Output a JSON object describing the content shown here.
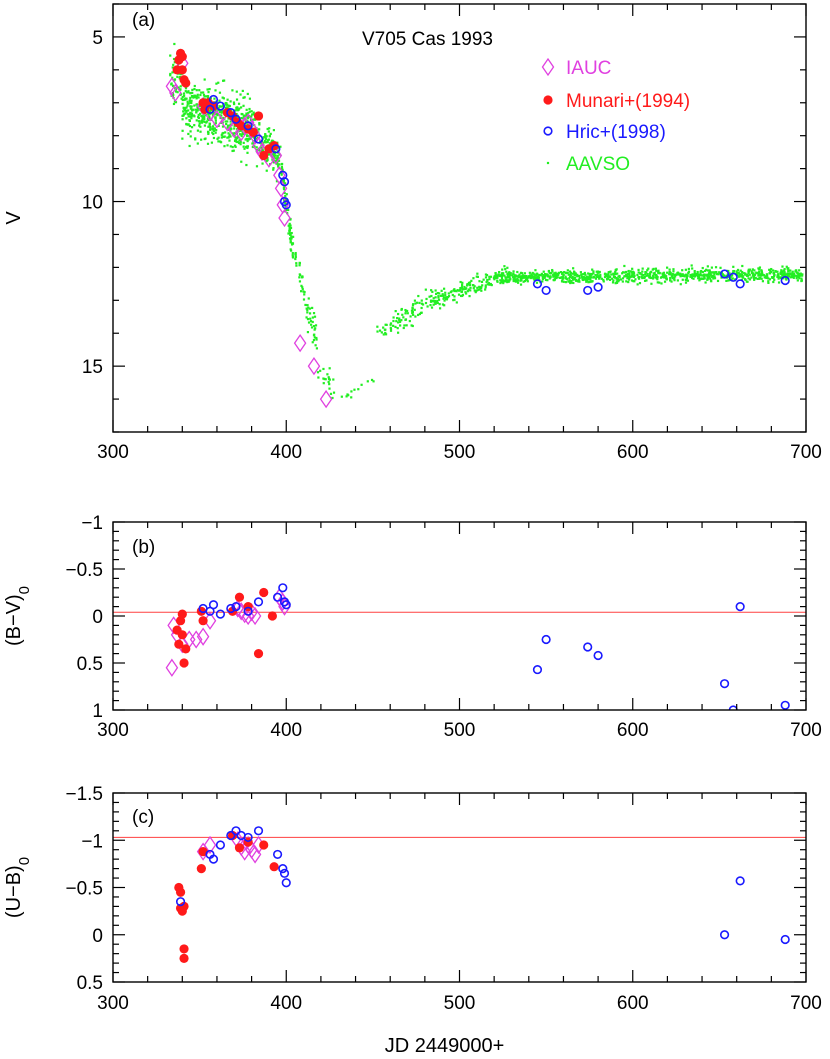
{
  "chart_data": [
    {
      "panel": "(a)",
      "type": "scatter",
      "title": "V705 Cas 1993",
      "xlabel": "",
      "ylabel": "V",
      "xlim": [
        300,
        700
      ],
      "ylim": [
        17,
        4
      ],
      "y_inverted": true,
      "xticks": [
        300,
        400,
        500,
        600,
        700
      ],
      "yticks": [
        5,
        10,
        15
      ],
      "legend_position": "top-right",
      "series": [
        {
          "name": "IAUC",
          "marker": "diamond-open",
          "color": "#e040e0",
          "points": [
            [
              334,
              6.5
            ],
            [
              336,
              6.7
            ],
            [
              340,
              5.8
            ],
            [
              352,
              7.1
            ],
            [
              356,
              7.3
            ],
            [
              360,
              7.5
            ],
            [
              366,
              7.6
            ],
            [
              370,
              7.8
            ],
            [
              374,
              7.9
            ],
            [
              376,
              7.7
            ],
            [
              378,
              7.6
            ],
            [
              380,
              7.8
            ],
            [
              382,
              8.0
            ],
            [
              384,
              8.3
            ],
            [
              386,
              8.5
            ],
            [
              390,
              8.7
            ],
            [
              394,
              8.6
            ],
            [
              396,
              9.2
            ],
            [
              397,
              9.6
            ],
            [
              398,
              10.1
            ],
            [
              399,
              10.5
            ],
            [
              408,
              14.3
            ],
            [
              416,
              15.0
            ],
            [
              423,
              16.0
            ]
          ]
        },
        {
          "name": "Munari+(1994)",
          "marker": "circle-filled",
          "color": "#ff1a1a",
          "points": [
            [
              337,
              6.0
            ],
            [
              338,
              5.7
            ],
            [
              339,
              5.5
            ],
            [
              340,
              5.6
            ],
            [
              340,
              6.0
            ],
            [
              341,
              6.3
            ],
            [
              342,
              6.4
            ],
            [
              352,
              7.0
            ],
            [
              353,
              7.2
            ],
            [
              355,
              7.0
            ],
            [
              358,
              7.1
            ],
            [
              366,
              7.3
            ],
            [
              369,
              7.4
            ],
            [
              372,
              7.6
            ],
            [
              374,
              7.7
            ],
            [
              378,
              7.8
            ],
            [
              381,
              7.9
            ],
            [
              384,
              7.4
            ],
            [
              387,
              8.6
            ],
            [
              390,
              8.4
            ],
            [
              393,
              8.3
            ]
          ]
        },
        {
          "name": "Hric+(1998)",
          "marker": "circle-open",
          "color": "#1a1aff",
          "points": [
            [
              356,
              7.2
            ],
            [
              358,
              6.9
            ],
            [
              362,
              7.1
            ],
            [
              368,
              7.3
            ],
            [
              371,
              7.5
            ],
            [
              378,
              7.7
            ],
            [
              384,
              8.1
            ],
            [
              394,
              8.4
            ],
            [
              398,
              9.2
            ],
            [
              399,
              9.4
            ],
            [
              399,
              10.0
            ],
            [
              400,
              10.1
            ],
            [
              545,
              12.5
            ],
            [
              550,
              12.7
            ],
            [
              574,
              12.7
            ],
            [
              580,
              12.6
            ],
            [
              653,
              12.2
            ],
            [
              658,
              12.3
            ],
            [
              662,
              12.5
            ],
            [
              688,
              12.4
            ]
          ]
        },
        {
          "name": "AAVSO",
          "marker": "dot",
          "color": "#22ee22",
          "segments": [
            {
              "x_from": 333,
              "x_to": 340,
              "y_center": 6.3,
              "y_end": 6.3,
              "scatter": 0.9,
              "n": 60
            },
            {
              "x_from": 340,
              "x_to": 380,
              "y_center": 7.0,
              "y_end": 7.8,
              "scatter": 0.8,
              "n": 520
            },
            {
              "x_from": 380,
              "x_to": 397,
              "y_center": 7.8,
              "y_end": 8.8,
              "scatter": 0.6,
              "n": 160
            },
            {
              "x_from": 397,
              "x_to": 404,
              "y_center": 9.0,
              "y_end": 11.5,
              "scatter": 0.4,
              "n": 70
            },
            {
              "x_from": 404,
              "x_to": 418,
              "y_center": 11.5,
              "y_end": 14.3,
              "scatter": 0.6,
              "n": 60
            },
            {
              "x_from": 418,
              "x_to": 428,
              "y_center": 15.0,
              "y_end": 15.9,
              "scatter": 0.4,
              "n": 20
            },
            {
              "x_from": 432,
              "x_to": 452,
              "y_center": 16.0,
              "y_end": 15.3,
              "scatter": 0.15,
              "n": 12
            },
            {
              "x_from": 452,
              "x_to": 485,
              "y_center": 14.0,
              "y_end": 13.0,
              "scatter": 0.35,
              "n": 90
            },
            {
              "x_from": 485,
              "x_to": 520,
              "y_center": 13.0,
              "y_end": 12.3,
              "scatter": 0.3,
              "n": 130
            },
            {
              "x_from": 520,
              "x_to": 698,
              "y_center": 12.3,
              "y_end": 12.2,
              "scatter": 0.2,
              "n": 950
            }
          ]
        }
      ]
    },
    {
      "panel": "(b)",
      "type": "scatter",
      "xlabel": "",
      "ylabel": "(B−V)",
      "ylabel_subscript": "0",
      "xlim": [
        300,
        700
      ],
      "ylim": [
        1,
        -1
      ],
      "y_inverted": true,
      "xticks": [
        300,
        400,
        500,
        600,
        700
      ],
      "yticks": [
        -1,
        -0.5,
        0,
        0.5,
        1
      ],
      "ytick_labels": [
        "−1",
        "−0.5",
        "0",
        "0.5",
        "1"
      ],
      "reference_line": -0.04,
      "series": [
        {
          "name": "IAUC",
          "marker": "diamond-open",
          "color": "#e040e0",
          "points": [
            [
              334,
              0.55
            ],
            [
              335,
              0.1
            ],
            [
              337,
              0.2
            ],
            [
              340,
              0.3
            ],
            [
              344,
              0.25
            ],
            [
              348,
              0.25
            ],
            [
              352,
              0.22
            ],
            [
              356,
              0.05
            ],
            [
              372,
              -0.08
            ],
            [
              374,
              -0.05
            ],
            [
              376,
              -0.02
            ],
            [
              378,
              0.0
            ],
            [
              380,
              -0.04
            ],
            [
              382,
              0.0
            ],
            [
              396,
              -0.2
            ],
            [
              398,
              -0.15
            ],
            [
              399,
              -0.1
            ]
          ]
        },
        {
          "name": "Munari+(1994)",
          "marker": "circle-filled",
          "color": "#ff1a1a",
          "points": [
            [
              337,
              0.15
            ],
            [
              338,
              0.3
            ],
            [
              339,
              0.05
            ],
            [
              340,
              -0.02
            ],
            [
              340,
              0.2
            ],
            [
              341,
              0.5
            ],
            [
              342,
              0.35
            ],
            [
              351,
              -0.05
            ],
            [
              352,
              0.05
            ],
            [
              369,
              -0.05
            ],
            [
              373,
              -0.2
            ],
            [
              378,
              -0.1
            ],
            [
              384,
              0.4
            ],
            [
              387,
              -0.25
            ],
            [
              392,
              0.0
            ]
          ]
        },
        {
          "name": "Hric+(1998)",
          "marker": "circle-open",
          "color": "#1a1aff",
          "points": [
            [
              352,
              -0.08
            ],
            [
              356,
              -0.05
            ],
            [
              358,
              -0.12
            ],
            [
              362,
              -0.02
            ],
            [
              368,
              -0.08
            ],
            [
              371,
              -0.1
            ],
            [
              378,
              -0.05
            ],
            [
              384,
              -0.15
            ],
            [
              395,
              -0.2
            ],
            [
              398,
              -0.3
            ],
            [
              399,
              -0.15
            ],
            [
              400,
              -0.12
            ],
            [
              545,
              0.57
            ],
            [
              550,
              0.25
            ],
            [
              574,
              0.33
            ],
            [
              580,
              0.42
            ],
            [
              653,
              0.72
            ],
            [
              658,
              1.0
            ],
            [
              662,
              -0.1
            ],
            [
              688,
              0.95
            ]
          ]
        }
      ]
    },
    {
      "panel": "(c)",
      "type": "scatter",
      "xlabel": "JD 2449000+",
      "ylabel": "(U−B)",
      "ylabel_subscript": "0",
      "xlim": [
        300,
        700
      ],
      "ylim": [
        0.5,
        -1.5
      ],
      "y_inverted": true,
      "xticks": [
        300,
        400,
        500,
        600,
        700
      ],
      "yticks": [
        -1.5,
        -1,
        -0.5,
        0,
        0.5
      ],
      "ytick_labels": [
        "−1.5",
        "−1",
        "−0.5",
        "0",
        "0.5"
      ],
      "reference_line": -1.03,
      "series": [
        {
          "name": "IAUC",
          "marker": "diamond-open",
          "color": "#e040e0",
          "points": [
            [
              352,
              -0.88
            ],
            [
              356,
              -0.95
            ],
            [
              372,
              -1.0
            ],
            [
              374,
              -0.93
            ],
            [
              376,
              -0.88
            ],
            [
              378,
              -0.95
            ],
            [
              380,
              -0.9
            ],
            [
              382,
              -0.85
            ],
            [
              384,
              -0.95
            ]
          ]
        },
        {
          "name": "Munari+(1994)",
          "marker": "circle-filled",
          "color": "#ff1a1a",
          "points": [
            [
              338,
              -0.5
            ],
            [
              339,
              -0.45
            ],
            [
              339,
              -0.28
            ],
            [
              340,
              -0.25
            ],
            [
              341,
              -0.3
            ],
            [
              341,
              0.15
            ],
            [
              341,
              0.25
            ],
            [
              351,
              -0.7
            ],
            [
              352,
              -0.88
            ],
            [
              369,
              -1.05
            ],
            [
              373,
              -0.92
            ],
            [
              378,
              -0.98
            ],
            [
              387,
              -0.95
            ],
            [
              393,
              -0.72
            ]
          ]
        },
        {
          "name": "Hric+(1998)",
          "marker": "circle-open",
          "color": "#1a1aff",
          "points": [
            [
              339,
              -0.35
            ],
            [
              356,
              -0.85
            ],
            [
              358,
              -0.8
            ],
            [
              362,
              -0.95
            ],
            [
              368,
              -1.05
            ],
            [
              371,
              -1.1
            ],
            [
              374,
              -1.05
            ],
            [
              378,
              -1.03
            ],
            [
              384,
              -1.1
            ],
            [
              395,
              -0.85
            ],
            [
              398,
              -0.7
            ],
            [
              399,
              -0.65
            ],
            [
              400,
              -0.55
            ],
            [
              653,
              0.0
            ],
            [
              662,
              -0.57
            ],
            [
              688,
              0.05
            ]
          ]
        }
      ]
    }
  ]
}
